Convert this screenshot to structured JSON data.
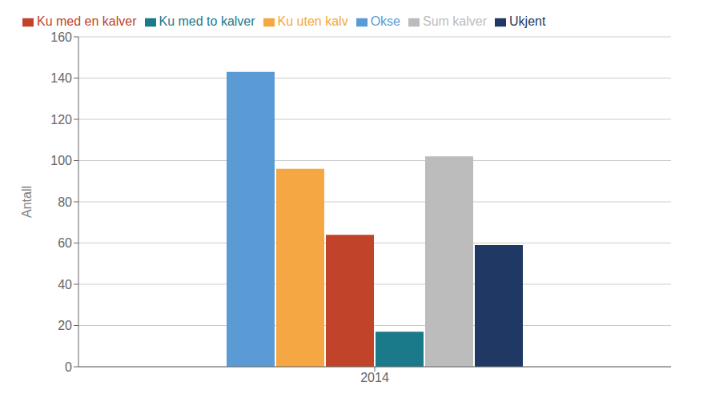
{
  "chart_data": {
    "type": "bar",
    "categories": [
      "2014"
    ],
    "series": [
      {
        "name": "Okse",
        "color": "#5B9BD5",
        "values": [
          143
        ]
      },
      {
        "name": "Ku uten kalv",
        "color": "#F4A742",
        "values": [
          96
        ]
      },
      {
        "name": "Ku med en kalver",
        "color": "#C0432A",
        "values": [
          64
        ]
      },
      {
        "name": "Ku med to kalver",
        "color": "#1B7A8A",
        "values": [
          17
        ]
      },
      {
        "name": "Sum kalver",
        "color": "#BCBCBC",
        "values": [
          102
        ]
      },
      {
        "name": "Ukjent",
        "color": "#1F3864",
        "values": [
          59
        ]
      }
    ],
    "ylabel": "Antall",
    "ylim": [
      0,
      160
    ],
    "yticks": [
      0,
      20,
      40,
      60,
      80,
      100,
      120,
      140,
      160
    ],
    "grid": true,
    "legend": "upper left"
  }
}
